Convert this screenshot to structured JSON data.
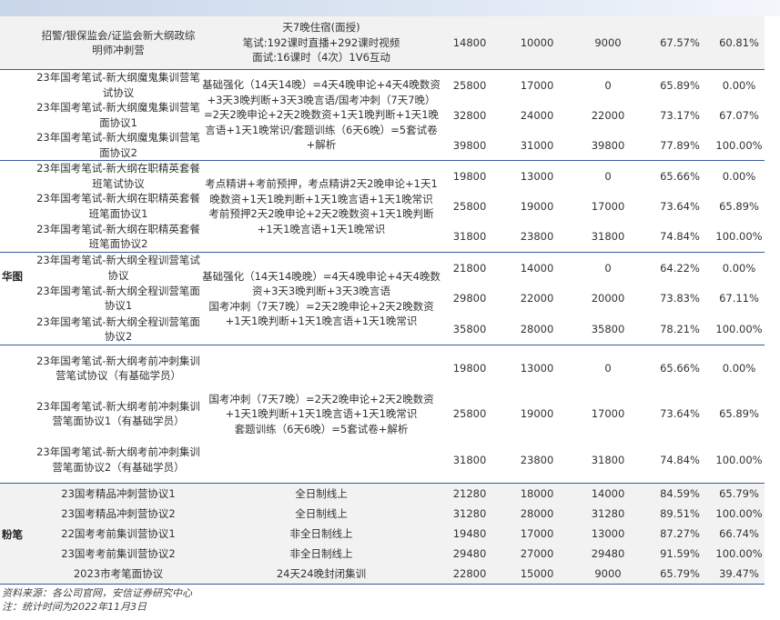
{
  "groups": [
    {
      "gray": true,
      "height": 59,
      "names": [
        "招警/银保监会/证监会新大纲政综明师冲刺营"
      ],
      "desc": [
        "天7晚住宿(面授)",
        "笔试:192课时直播+292课时视频",
        "面试:16课时（4次）1V6互动"
      ],
      "rows": [
        [
          "14800",
          "10000",
          "9000",
          "67.57%",
          "60.81%"
        ]
      ]
    },
    {
      "gray": false,
      "height": 100,
      "names": [
        "23年国考笔试-新大纲魔鬼集训营笔试协议",
        "23年国考笔试-新大纲魔鬼集训营笔面协议1",
        "23年国考笔试-新大纲魔鬼集训营笔面协议2"
      ],
      "desc": [
        "基础强化（14天14晚）=4天4晚申论+4天4晚数资+3天3晚判断+3天3晚言语/国考冲刺（7天7晚）=2天2晚申论+2天2晚数资+1天1晚判断+1天1晚言语+1天1晚常识/套题训练（6天6晚）=5套试卷+解析"
      ],
      "rows": [
        [
          "25800",
          "17000",
          "0",
          "65.89%",
          "0.00%"
        ],
        [
          "32800",
          "24000",
          "22000",
          "73.17%",
          "67.07%"
        ],
        [
          "39800",
          "31000",
          "39800",
          "77.89%",
          "100.00%"
        ]
      ]
    },
    {
      "gray": false,
      "height": 101,
      "names": [
        "23年国考笔试-新大纲在职精英套餐班笔试协议",
        "23年国考笔试-新大纲在职精英套餐班笔面协议1",
        "23年国考笔试-新大纲在职精英套餐班笔面协议2"
      ],
      "desc": [
        "考点精讲+考前预押，考点精讲2天2晚申论+1天1晚数资+1天1晚判断+1天1晚言语+1天1晚常识",
        "考前预押2天2晚申论+2天2晚数资+1天1晚判断+1天1晚言语+1天1晚常识"
      ],
      "rows": [
        [
          "19800",
          "13000",
          "0",
          "65.66%",
          "0.00%"
        ],
        [
          "25800",
          "19000",
          "17000",
          "73.64%",
          "65.89%"
        ],
        [
          "31800",
          "23800",
          "31800",
          "74.84%",
          "100.00%"
        ]
      ]
    },
    {
      "gray": false,
      "height": 102,
      "names": [
        "23年国考笔试-新大纲全程训营笔试协议",
        "23年国考笔试-新大纲全程训营笔面协议1",
        "23年国考笔试-新大纲全程训营笔面协议2"
      ],
      "desc": [
        "基础强化（14天14晚晚）=4天4晚申论+4天4晚数资+3天3晚判断+3天3晚言语",
        "国考冲刺（7天7晚）=2天2晚申论+2天2晚数资+1天1晚判断+1天1晚言语+1天1晚常识"
      ],
      "rows": [
        [
          "21800",
          "14000",
          "0",
          "64.22%",
          "0.00%"
        ],
        [
          "29800",
          "22000",
          "20000",
          "73.83%",
          "67.11%"
        ],
        [
          "35800",
          "28000",
          "35800",
          "78.21%",
          "100.00%"
        ]
      ]
    },
    {
      "gray": false,
      "height": 152,
      "names": [
        "23年国考笔试-新大纲考前冲刺集训营笔试协议（有基础学员）",
        "23年国考笔试-新大纲考前冲刺集训营笔面协议1（有基础学员）",
        "23年国考笔试-新大纲考前冲刺集训营笔面协议2（有基础学员）"
      ],
      "desc": [
        "国考冲刺（7天7晚）=2天2晚申论+2天2晚数资+1天1晚判断+1天1晚言语+1天1晚常识",
        "套题训练（6天6晚）=5套试卷+解析"
      ],
      "rows": [
        [
          "19800",
          "13000",
          "0",
          "65.66%",
          "0.00%"
        ],
        [
          "25800",
          "19000",
          "17000",
          "73.64%",
          "65.89%"
        ],
        [
          "31800",
          "23800",
          "31800",
          "74.84%",
          "100.00%"
        ]
      ]
    },
    {
      "gray": true,
      "height": 111,
      "fb": true,
      "names": [
        "23国考精品冲刺营协议1",
        "23国考精品冲刺营协议2",
        "22国考考前集训营协议1",
        "23国考考前集训营协议2",
        "2023市考笔面协议"
      ],
      "desc": [
        "全日制线上",
        "全日制线上",
        "非全日制线上",
        "非全日制线上",
        "24天24晚封闭集训"
      ],
      "rows": [
        [
          "21280",
          "18000",
          "14000",
          "84.59%",
          "65.79%"
        ],
        [
          "31280",
          "28000",
          "31280",
          "89.51%",
          "100.00%"
        ],
        [
          "19480",
          "17000",
          "13000",
          "87.27%",
          "66.74%"
        ],
        [
          "29480",
          "27000",
          "29480",
          "91.59%",
          "100.00%"
        ],
        [
          "22800",
          "15000",
          "9000",
          "65.79%",
          "39.47%"
        ]
      ]
    }
  ],
  "brands": {
    "huatu": "华图",
    "fenbi": "粉笔"
  },
  "notes": {
    "source": "资料来源：各公司官网，安信证券研究中心",
    "note": "注：统计时间为2022年11月3日"
  }
}
